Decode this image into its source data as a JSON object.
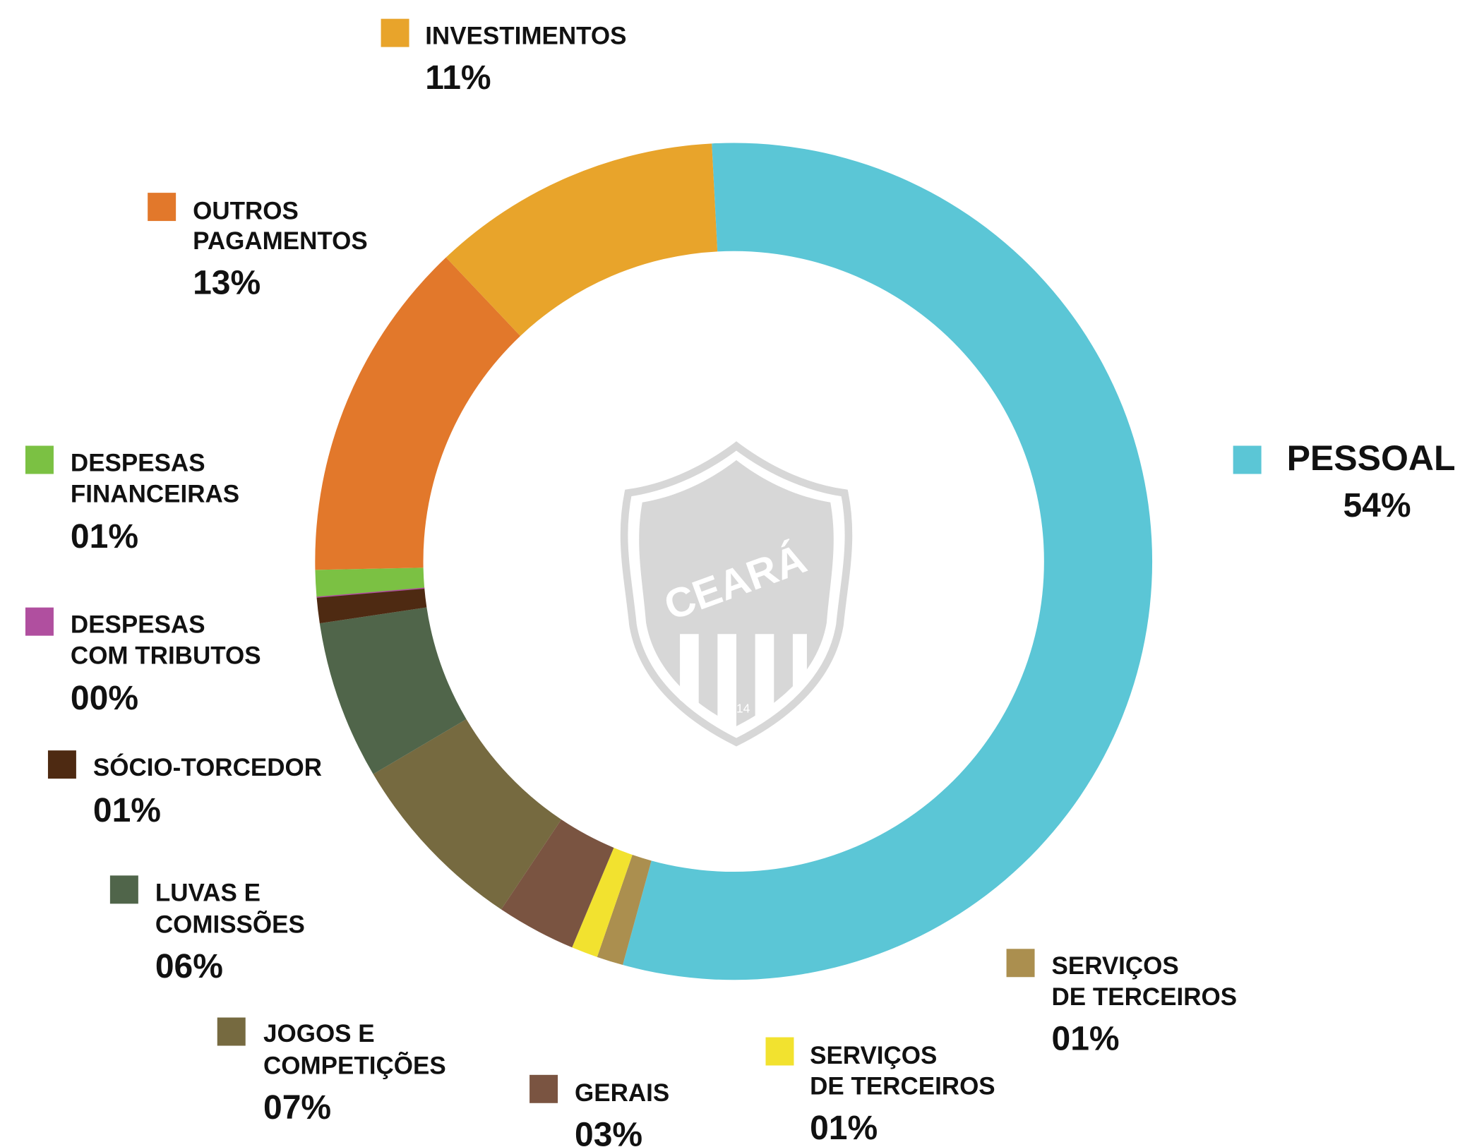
{
  "chart_data": {
    "type": "donut",
    "logo": {
      "text": "CEARÁ",
      "year": "1914"
    },
    "series": [
      {
        "name": [
          "PESSOAL"
        ],
        "values": [
          54
        ],
        "value_labels": [
          "54%"
        ],
        "color": "#5bc6d6"
      },
      {
        "name": [
          "SERVIÇOS",
          "DE TERCEIROS"
        ],
        "values": [
          1
        ],
        "value_labels": [
          "01%"
        ],
        "color": "#ab8f4f"
      },
      {
        "name": [
          "SERVIÇOS",
          "DE TERCEIROS"
        ],
        "values": [
          1
        ],
        "value_labels": [
          "01%"
        ],
        "color": "#f2e22f"
      },
      {
        "name": [
          "GERAIS"
        ],
        "values": [
          3
        ],
        "value_labels": [
          "03%"
        ],
        "color": "#7a5441"
      },
      {
        "name": [
          "JOGOS E",
          "COMPETIÇÕES"
        ],
        "values": [
          7
        ],
        "value_labels": [
          "07%"
        ],
        "color": "#766a40"
      },
      {
        "name": [
          "LUVAS E",
          "COMISSÕES"
        ],
        "values": [
          6
        ],
        "value_labels": [
          "06%"
        ],
        "color": "#50654a"
      },
      {
        "name": [
          "SÓCIO-TORCEDOR"
        ],
        "values": [
          1
        ],
        "value_labels": [
          "01%"
        ],
        "color": "#4e2a12"
      },
      {
        "name": [
          "DESPESAS",
          "COM TRIBUTOS"
        ],
        "values": [
          0
        ],
        "value_labels": [
          "00%"
        ],
        "color": "#b04f9f"
      },
      {
        "name": [
          "DESPESAS",
          "FINANCEIRAS"
        ],
        "values": [
          1
        ],
        "value_labels": [
          "01%"
        ],
        "color": "#7bc143"
      },
      {
        "name": [
          "OUTROS",
          "PAGAMENTOS"
        ],
        "values": [
          13
        ],
        "value_labels": [
          "13%"
        ],
        "color": "#e2782b"
      },
      {
        "name": [
          "INVESTIMENTOS"
        ],
        "values": [
          11
        ],
        "value_labels": [
          "11%"
        ],
        "color": "#e8a42b"
      }
    ]
  }
}
